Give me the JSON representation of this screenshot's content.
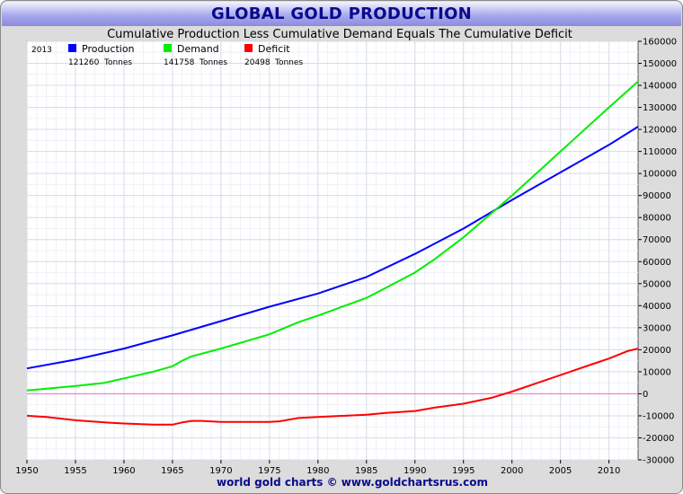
{
  "header": {
    "title": "GLOBAL GOLD PRODUCTION"
  },
  "chart_data": {
    "type": "line",
    "subtitle": "Cumulative Production Less Cumulative Demand Equals The Cumulative Deficit",
    "legend": {
      "year": "2013",
      "items": [
        {
          "name": "Production",
          "color": "#0000ff",
          "value": "121260",
          "unit": "Tonnes"
        },
        {
          "name": "Demand",
          "color": "#00ee00",
          "value": "141758",
          "unit": "Tonnes"
        },
        {
          "name": "Deficit",
          "color": "#ff0000",
          "value": "20498",
          "unit": "Tonnes"
        }
      ]
    },
    "xlim": [
      1950,
      2013
    ],
    "ylim": [
      -30000,
      160000
    ],
    "x_ticks": [
      1950,
      1955,
      1960,
      1965,
      1970,
      1975,
      1980,
      1985,
      1990,
      1995,
      2000,
      2005,
      2010
    ],
    "y_ticks": [
      -30000,
      -20000,
      -10000,
      0,
      10000,
      20000,
      30000,
      40000,
      50000,
      60000,
      70000,
      80000,
      90000,
      100000,
      110000,
      120000,
      130000,
      140000,
      150000,
      160000
    ],
    "grid": true,
    "y_axis_side": "right",
    "zero_line_color": "#ff66cc",
    "series": [
      {
        "name": "Production",
        "color": "#0000ff",
        "x": [
          1950,
          1955,
          1960,
          1965,
          1970,
          1975,
          1980,
          1985,
          1990,
          1995,
          2000,
          2005,
          2010,
          2013
        ],
        "values": [
          11500,
          15500,
          20500,
          26500,
          33000,
          39500,
          45500,
          53000,
          63500,
          75000,
          88000,
          100500,
          113000,
          121260
        ]
      },
      {
        "name": "Demand",
        "color": "#00ee00",
        "x": [
          1950,
          1955,
          1958,
          1960,
          1963,
          1965,
          1966,
          1967,
          1970,
          1975,
          1978,
          1980,
          1985,
          1990,
          1992,
          1995,
          2000,
          2005,
          2010,
          2013
        ],
        "values": [
          1500,
          3500,
          5000,
          7000,
          10000,
          12500,
          15000,
          17000,
          20500,
          27000,
          32500,
          35500,
          43500,
          55000,
          61000,
          71000,
          90000,
          110000,
          130000,
          141758
        ]
      },
      {
        "name": "Deficit",
        "color": "#ff0000",
        "x": [
          1950,
          1952,
          1955,
          1958,
          1960,
          1963,
          1965,
          1966,
          1967,
          1968,
          1970,
          1975,
          1976,
          1978,
          1980,
          1985,
          1987,
          1990,
          1992,
          1995,
          1998,
          2000,
          2003,
          2005,
          2008,
          2010,
          2012,
          2013
        ],
        "values": [
          -10000,
          -10500,
          -12000,
          -13000,
          -13500,
          -14000,
          -14000,
          -13000,
          -12300,
          -12300,
          -12800,
          -12800,
          -12500,
          -11000,
          -10500,
          -9500,
          -8700,
          -7800,
          -6300,
          -4500,
          -1700,
          1000,
          5500,
          8500,
          13000,
          16000,
          19500,
          20498
        ]
      }
    ],
    "footer": "world gold charts © www.goldchartsrus.com"
  }
}
